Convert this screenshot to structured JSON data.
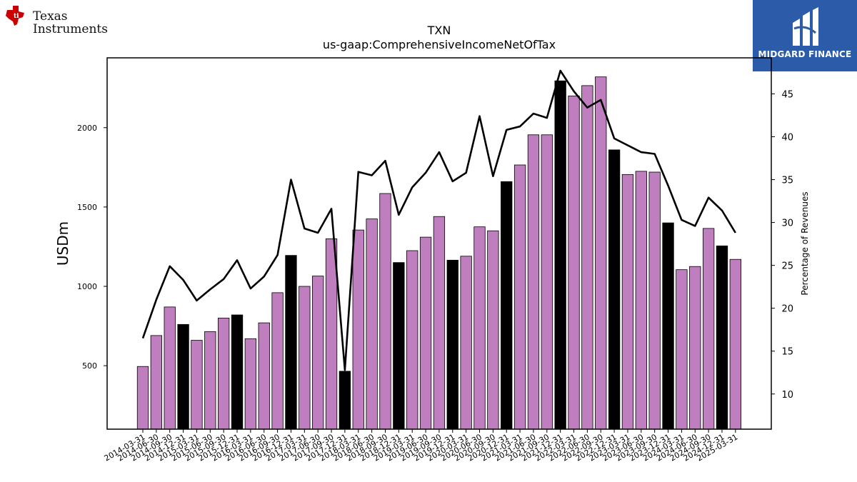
{
  "brand": {
    "left_logo_text": [
      "Texas",
      "Instruments"
    ],
    "right_logo_text": "MIDGARD FINANCE",
    "right_logo_color": "#2c5ba9",
    "left_logo_color": "#cc0000"
  },
  "chart_data": {
    "type": "bar",
    "title": "TXN",
    "subtitle": "us-gaap:ComprehensiveIncomeNetOfTax",
    "ylabel": "USDm",
    "y2label": "Percentage of Revenues",
    "ylim": [
      100,
      2440
    ],
    "y2lim": [
      5.9,
      49.2
    ],
    "yticks": [
      500,
      1000,
      1500,
      2000
    ],
    "y2ticks": [
      10,
      15,
      20,
      25,
      30,
      35,
      40,
      45
    ],
    "bar_colors": {
      "quarter": "#bf7fbf",
      "year_end": "#000000"
    },
    "line_color": "#000000",
    "categories": [
      "2014-03-31",
      "2014-06-30",
      "2014-09-30",
      "2014-12-31",
      "2015-03-31",
      "2015-06-30",
      "2015-09-30",
      "2015-12-31",
      "2016-03-31",
      "2016-06-30",
      "2016-09-30",
      "2016-12-31",
      "2017-03-31",
      "2017-06-30",
      "2017-09-30",
      "2017-12-31",
      "2018-03-31",
      "2018-06-30",
      "2018-09-30",
      "2018-12-31",
      "2019-03-31",
      "2019-06-30",
      "2019-09-30",
      "2019-12-31",
      "2020-03-31",
      "2020-06-30",
      "2020-09-30",
      "2020-12-31",
      "2021-03-31",
      "2021-06-30",
      "2021-09-30",
      "2021-12-31",
      "2022-03-31",
      "2022-06-30",
      "2022-09-30",
      "2022-12-31",
      "2023-03-31",
      "2023-06-30",
      "2023-09-30",
      "2023-12-31",
      "2024-03-31",
      "2024-06-30",
      "2024-09-30",
      "2024-12-31",
      "2025-03-31"
    ],
    "series": [
      {
        "type": "bar",
        "axis": "left",
        "values": [
          495,
          690,
          870,
          760,
          660,
          715,
          800,
          820,
          670,
          770,
          960,
          1195,
          1000,
          1065,
          1300,
          465,
          1355,
          1425,
          1585,
          1150,
          1225,
          1310,
          1440,
          1165,
          1190,
          1375,
          1350,
          1660,
          1765,
          1955,
          1955,
          2295,
          2200,
          2265,
          2320,
          1860,
          1705,
          1725,
          1720,
          1400,
          1105,
          1125,
          1365,
          1255,
          1170
        ],
        "year_end": [
          false,
          false,
          false,
          true,
          false,
          false,
          false,
          true,
          false,
          false,
          false,
          true,
          false,
          false,
          false,
          true,
          false,
          false,
          false,
          true,
          false,
          false,
          false,
          true,
          false,
          false,
          false,
          true,
          false,
          false,
          false,
          true,
          false,
          false,
          false,
          true,
          false,
          false,
          false,
          true,
          false,
          false,
          false,
          true,
          false
        ]
      },
      {
        "type": "line",
        "axis": "right",
        "values": [
          16.5,
          21.0,
          24.9,
          23.3,
          20.9,
          22.2,
          23.4,
          25.6,
          22.3,
          23.7,
          26.2,
          35.0,
          29.3,
          28.8,
          31.6,
          12.8,
          35.9,
          35.5,
          37.2,
          30.9,
          34.1,
          35.8,
          38.2,
          34.8,
          35.8,
          42.4,
          35.4,
          40.8,
          41.2,
          42.7,
          42.2,
          47.7,
          45.3,
          43.4,
          44.3,
          39.8,
          39.0,
          38.2,
          38.0,
          34.3,
          30.3,
          29.6,
          32.9,
          31.4,
          28.8
        ]
      }
    ]
  }
}
